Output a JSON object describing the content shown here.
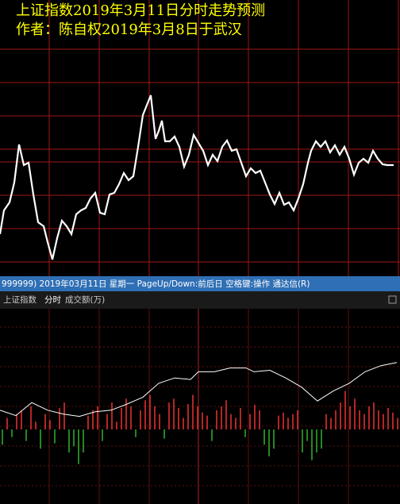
{
  "chart_data": [
    {
      "type": "line",
      "title": "上证指数2019年3月11日分时走势预测",
      "subtitle": "作者：陈自权2019年3月8日于武汉",
      "color": "#ffffff",
      "xlim": [
        0,
        504
      ],
      "ylim": [
        0,
        348
      ],
      "x": [
        0,
        5,
        12,
        18,
        24,
        30,
        36,
        42,
        48,
        55,
        60,
        66,
        72,
        78,
        84,
        90,
        96,
        102,
        108,
        114,
        120,
        126,
        132,
        138,
        144,
        150,
        156,
        162,
        168,
        174,
        180,
        186,
        190,
        196,
        200,
        204,
        208,
        214,
        220,
        226,
        232,
        238,
        244,
        250,
        256,
        262,
        268,
        274,
        280,
        286,
        292,
        298,
        304,
        310,
        316,
        322,
        328,
        334,
        340,
        346,
        352,
        358,
        364,
        370,
        376,
        382,
        388,
        392,
        398,
        404,
        410,
        416,
        422,
        428,
        434,
        440,
        446,
        452,
        458,
        464,
        470,
        476,
        482,
        488,
        496
      ],
      "values": [
        53,
        83,
        93,
        118,
        166,
        140,
        143,
        103,
        68,
        63,
        43,
        21,
        48,
        70,
        63,
        53,
        78,
        83,
        86,
        98,
        105,
        80,
        78,
        103,
        105,
        116,
        130,
        121,
        126,
        163,
        203,
        218,
        228,
        173,
        183,
        196,
        170,
        170,
        176,
        163,
        138,
        153,
        178,
        168,
        158,
        140,
        153,
        145,
        163,
        171,
        158,
        160,
        143,
        126,
        136,
        130,
        133,
        118,
        103,
        91,
        105,
        90,
        93,
        83,
        98,
        116,
        143,
        158,
        170,
        163,
        170,
        156,
        165,
        153,
        163,
        148,
        128,
        143,
        148,
        143,
        158,
        148,
        141,
        140,
        140
      ]
    },
    {
      "type": "bar",
      "ylim": [
        -97,
        157
      ],
      "up_color": "#e03030",
      "down_color": "#2ea82e",
      "values": [
        -20,
        15,
        -10,
        20,
        25,
        -15,
        30,
        10,
        -25,
        20,
        12,
        -18,
        28,
        35,
        -30,
        -22,
        -45,
        -30,
        18,
        25,
        30,
        -15,
        20,
        35,
        10,
        28,
        40,
        30,
        -10,
        25,
        38,
        45,
        30,
        20,
        -12,
        35,
        40,
        28,
        15,
        33,
        45,
        30,
        22,
        18,
        -15,
        25,
        30,
        38,
        20,
        15,
        28,
        -10,
        20,
        32,
        25,
        -20,
        -35,
        -25,
        18,
        22,
        15,
        20,
        25,
        -30,
        -15,
        -40,
        -30,
        -25,
        20,
        15,
        25,
        35,
        50,
        30,
        40,
        25,
        20,
        30,
        35,
        25,
        20,
        28,
        22,
        15
      ],
      "line": {
        "color": "#ffffff",
        "x": [
          0,
          20,
          40,
          60,
          80,
          100,
          120,
          140,
          160,
          180,
          200,
          220,
          240,
          250,
          270,
          290,
          310,
          320,
          340,
          360,
          380,
          400,
          420,
          440,
          460,
          480,
          500
        ],
        "values": [
          25,
          18,
          35,
          25,
          20,
          17,
          23,
          25,
          33,
          42,
          60,
          67,
          65,
          75,
          75,
          80,
          80,
          75,
          77,
          67,
          55,
          37,
          50,
          60,
          75,
          83,
          87
        ]
      }
    }
  ],
  "toolbar": {
    "text": "999999) 2019年03月11日 星期一 PageUp/Down:前后日 空格键:操作 通达信(R)"
  },
  "tabs": [
    "上证指数",
    "分时",
    "成交额(万)"
  ]
}
